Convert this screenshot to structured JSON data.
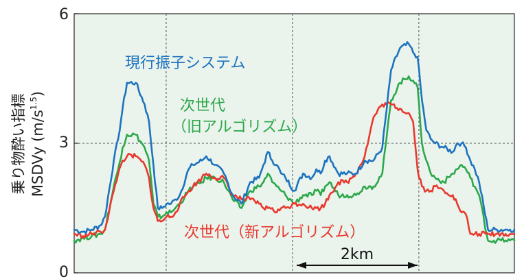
{
  "chart_data": {
    "type": "line",
    "ylabel_main": "乗り物酔い指標",
    "ylabel_sub": "MSDVy (m/s",
    "ylabel_exp": "1.5",
    "ylabel_close": ")",
    "ylim": [
      0,
      6
    ],
    "yticks": [
      "0",
      "3",
      "6"
    ],
    "grid": true,
    "scale_bar_label": "2km",
    "colors": {
      "background": "#eaf3ec",
      "blue": "#1c73bf",
      "green": "#2ca84a",
      "red": "#e8392e"
    },
    "series": [
      {
        "name": "現行振子システム",
        "color": "#1c73bf",
        "x": [
          0,
          2,
          4,
          6,
          7,
          9,
          10,
          11,
          12,
          14,
          16,
          17,
          18,
          19,
          20,
          21,
          22,
          23,
          24,
          26,
          27,
          29,
          30,
          32,
          34,
          36,
          38,
          40,
          42,
          43,
          44,
          45,
          46,
          47,
          48,
          50,
          52,
          54,
          55,
          56,
          57,
          58,
          60,
          62,
          64,
          66,
          68,
          70,
          72,
          74,
          76,
          77,
          78,
          79,
          80,
          81,
          82,
          84,
          86,
          87,
          88,
          89,
          90,
          91,
          92,
          94,
          96,
          98,
          99,
          100
        ],
        "y": [
          1.0,
          0.95,
          1.0,
          1.1,
          1.3,
          2.6,
          3.1,
          3.8,
          4.4,
          4.4,
          3.9,
          3.5,
          2.5,
          1.5,
          1.5,
          1.6,
          1.6,
          1.7,
          1.8,
          2.4,
          2.5,
          2.6,
          2.7,
          2.5,
          2.3,
          1.8,
          1.6,
          2.1,
          2.2,
          2.5,
          2.8,
          2.6,
          2.5,
          2.3,
          2.2,
          1.9,
          2.3,
          2.2,
          2.4,
          2.3,
          2.6,
          2.7,
          2.3,
          2.3,
          2.3,
          2.6,
          2.6,
          2.9,
          4.7,
          5.2,
          5.3,
          5.1,
          5.0,
          4.0,
          3.3,
          3.1,
          3.0,
          2.9,
          2.8,
          3.0,
          3.0,
          2.9,
          2.6,
          2.4,
          2.1,
          1.0,
          1.0,
          1.0,
          1.0,
          1.0
        ]
      },
      {
        "name": "次世代(旧アルゴリズム)",
        "name_line1": "次世代",
        "name_line2": "（旧アルゴリズム）",
        "color": "#2ca84a",
        "x": [
          0,
          2,
          4,
          6,
          7,
          9,
          10,
          11,
          12,
          14,
          16,
          17,
          18,
          19,
          20,
          21,
          22,
          23,
          24,
          26,
          27,
          29,
          30,
          32,
          34,
          36,
          38,
          40,
          42,
          43,
          44,
          45,
          46,
          47,
          48,
          50,
          52,
          54,
          55,
          56,
          57,
          58,
          60,
          62,
          64,
          66,
          68,
          70,
          72,
          74,
          76,
          77,
          78,
          79,
          80,
          81,
          82,
          84,
          86,
          87,
          88,
          89,
          90,
          91,
          92,
          94,
          96,
          98,
          99,
          100
        ],
        "y": [
          0.75,
          0.8,
          0.85,
          0.9,
          1.0,
          2.0,
          2.4,
          2.9,
          3.2,
          3.2,
          2.9,
          2.6,
          1.6,
          1.3,
          1.3,
          1.4,
          1.4,
          1.5,
          1.6,
          1.9,
          2.0,
          2.1,
          2.2,
          2.2,
          2.1,
          1.7,
          1.5,
          1.9,
          2.0,
          2.1,
          2.3,
          2.1,
          2.0,
          1.9,
          1.8,
          1.6,
          1.8,
          1.8,
          1.9,
          1.8,
          2.0,
          2.1,
          1.8,
          1.8,
          1.8,
          2.0,
          2.0,
          2.3,
          4.0,
          4.4,
          4.55,
          4.45,
          4.3,
          3.0,
          2.6,
          2.3,
          2.2,
          2.1,
          2.3,
          2.4,
          2.5,
          2.4,
          2.2,
          2.0,
          1.8,
          0.75,
          0.75,
          0.75,
          0.75,
          0.75
        ]
      },
      {
        "name": "次世代(新アルゴリズム)",
        "name_line1": "次世代（新アルゴリズム）",
        "color": "#e8392e",
        "x": [
          0,
          2,
          4,
          6,
          7,
          9,
          10,
          11,
          12,
          14,
          16,
          17,
          18,
          19,
          20,
          21,
          22,
          23,
          24,
          26,
          27,
          29,
          30,
          32,
          34,
          36,
          38,
          40,
          42,
          43,
          44,
          45,
          46,
          47,
          48,
          50,
          52,
          54,
          55,
          56,
          57,
          58,
          60,
          62,
          64,
          66,
          68,
          70,
          72,
          74,
          76,
          77,
          78,
          79,
          80,
          81,
          82,
          84,
          86,
          87,
          88,
          89,
          90,
          91,
          92,
          94,
          96,
          98,
          99,
          100
        ],
        "y": [
          0.9,
          0.85,
          0.9,
          0.95,
          1.0,
          1.9,
          2.3,
          2.6,
          2.7,
          2.7,
          2.5,
          2.2,
          1.5,
          1.2,
          1.2,
          1.3,
          1.3,
          1.4,
          1.6,
          1.9,
          2.0,
          2.2,
          2.3,
          2.2,
          2.2,
          1.8,
          1.7,
          1.7,
          1.6,
          1.5,
          1.5,
          1.5,
          1.4,
          1.5,
          1.5,
          1.6,
          1.6,
          1.5,
          1.5,
          1.5,
          1.6,
          1.8,
          2.1,
          2.1,
          2.3,
          2.7,
          3.6,
          3.9,
          3.9,
          3.8,
          3.7,
          3.5,
          2.4,
          2.0,
          1.9,
          1.9,
          2.0,
          1.9,
          1.8,
          1.6,
          1.4,
          1.35,
          0.9,
          0.9,
          0.9,
          0.9,
          0.9,
          0.9,
          0.9,
          0.9
        ]
      }
    ]
  }
}
